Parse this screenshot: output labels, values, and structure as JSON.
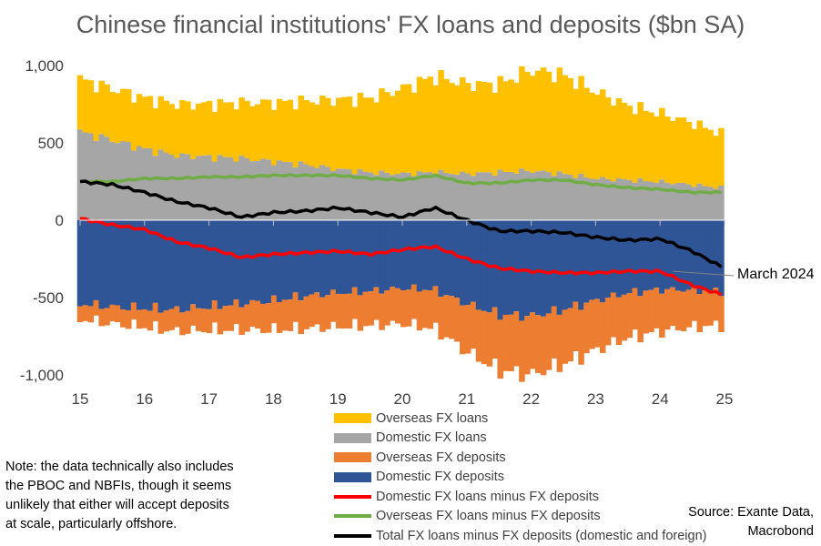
{
  "chart_data": {
    "type": "area",
    "title": "Chinese financial institutions' FX loans and deposits ($bn SA)",
    "x_tick_labels": [
      "15",
      "16",
      "17",
      "18",
      "19",
      "20",
      "21",
      "22",
      "23",
      "24",
      "25"
    ],
    "x_range": [
      2015,
      2025
    ],
    "ylim": [
      -1000,
      1000
    ],
    "y_ticks": [
      1000,
      500,
      0,
      -500,
      -1000
    ],
    "y_tick_labels": [
      "1,000",
      "500",
      "0",
      "-500",
      "-1,000"
    ],
    "x": [
      2015.0,
      2015.5,
      2016.0,
      2016.5,
      2017.0,
      2017.5,
      2018.0,
      2018.5,
      2019.0,
      2019.5,
      2020.0,
      2020.5,
      2021.0,
      2021.5,
      2022.0,
      2022.5,
      2023.0,
      2023.5,
      2024.0,
      2024.5,
      2024.95
    ],
    "series": [
      {
        "name": "Overseas FX loans",
        "kind": "stacked_bar",
        "color": "#FFC000",
        "values": [
          340,
          330,
          330,
          330,
          340,
          360,
          380,
          410,
          450,
          480,
          550,
          620,
          580,
          570,
          650,
          640,
          560,
          480,
          440,
          400,
          350
        ]
      },
      {
        "name": "Domestic FX loans",
        "kind": "stacked_bar",
        "color": "#A6A6A6",
        "values": [
          570,
          520,
          460,
          420,
          410,
          400,
          380,
          360,
          330,
          310,
          300,
          310,
          300,
          310,
          320,
          300,
          270,
          260,
          250,
          230,
          210
        ]
      },
      {
        "name": "Overseas FX deposits",
        "kind": "stacked_bar",
        "color": "#ED7D31",
        "values": [
          -100,
          -110,
          -120,
          -140,
          -150,
          -170,
          -190,
          -210,
          -220,
          -220,
          -230,
          -250,
          -310,
          -360,
          -380,
          -350,
          -320,
          -290,
          -270,
          -240,
          -220
        ]
      },
      {
        "name": "Domestic FX deposits",
        "kind": "stacked_bar",
        "color": "#2F5597",
        "values": [
          -540,
          -560,
          -570,
          -580,
          -560,
          -540,
          -520,
          -490,
          -470,
          -460,
          -440,
          -450,
          -540,
          -610,
          -620,
          -580,
          -520,
          -470,
          -450,
          -450,
          -460
        ]
      },
      {
        "name": "Domestic FX loans minus FX deposits",
        "kind": "line",
        "color": "#FF0000",
        "values": [
          10,
          -30,
          -60,
          -140,
          -180,
          -240,
          -220,
          -210,
          -200,
          -220,
          -190,
          -170,
          -250,
          -310,
          -330,
          -340,
          -340,
          -330,
          -330,
          -420,
          -480
        ]
      },
      {
        "name": "Overseas FX loans minus FX deposits",
        "kind": "line",
        "color": "#70AD47",
        "values": [
          250,
          250,
          270,
          270,
          280,
          280,
          290,
          290,
          290,
          270,
          260,
          290,
          240,
          240,
          260,
          260,
          230,
          210,
          200,
          180,
          180
        ]
      },
      {
        "name": "Total FX loans minus FX deposits (domestic and foreign)",
        "kind": "line",
        "color": "#000000",
        "values": [
          250,
          230,
          180,
          120,
          80,
          20,
          50,
          60,
          80,
          50,
          20,
          80,
          0,
          -70,
          -70,
          -80,
          -110,
          -130,
          -120,
          -200,
          -300
        ]
      }
    ],
    "annotation": "March 2024",
    "legend_position": "bottom-center"
  },
  "note": "Note: the data technically also includes\nthe PBOC and NBFIs, though it seems\nunlikely that either will accept deposits\nat scale, particularly offshore.",
  "source": "Source: Exante Data,\nMacrobond"
}
